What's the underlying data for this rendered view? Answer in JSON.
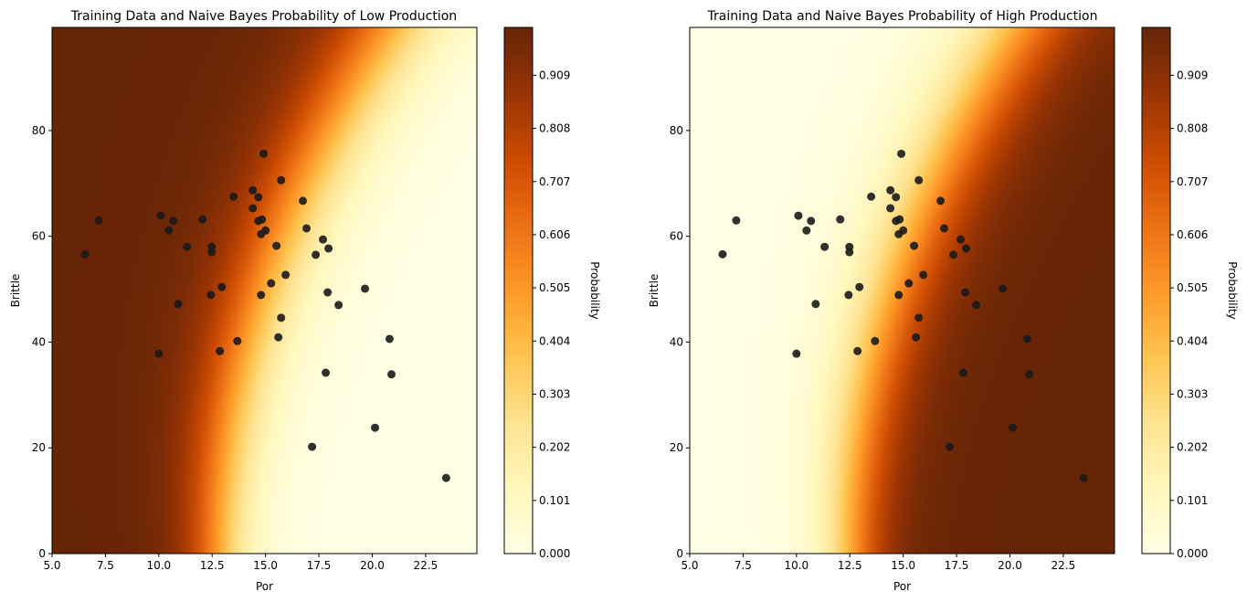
{
  "chart_data": [
    {
      "type": "heatmap",
      "title": "Training Data and Naive Bayes  Probability of Low Production",
      "xlabel": "Por",
      "ylabel": "Brittle",
      "xlim": [
        5.0,
        24.9
      ],
      "ylim": [
        0,
        99.5
      ],
      "xticks": [
        "5.0",
        "7.5",
        "10.0",
        "12.5",
        "15.0",
        "17.5",
        "20.0",
        "22.5"
      ],
      "yticks": [
        "0",
        "20",
        "40",
        "60",
        "80"
      ],
      "colorbar_label": "Probability",
      "colorbar_ticks": [
        "0.000",
        "0.101",
        "0.202",
        "0.303",
        "0.404",
        "0.505",
        "0.606",
        "0.707",
        "0.808",
        "0.909"
      ],
      "colormap": "YlOrBr",
      "target": "low"
    },
    {
      "type": "heatmap",
      "title": "Training Data and Naive Bayes  Probability of High Production",
      "xlabel": "Por",
      "ylabel": "Brittle",
      "xlim": [
        5.0,
        24.9
      ],
      "ylim": [
        0,
        99.5
      ],
      "xticks": [
        "5.0",
        "7.5",
        "10.0",
        "12.5",
        "15.0",
        "17.5",
        "20.0",
        "22.5"
      ],
      "yticks": [
        "0",
        "20",
        "40",
        "60",
        "80"
      ],
      "colorbar_label": "Probability",
      "colorbar_ticks": [
        "0.000",
        "0.101",
        "0.202",
        "0.303",
        "0.404",
        "0.505",
        "0.606",
        "0.707",
        "0.808",
        "0.909"
      ],
      "colormap": "YlOrBr",
      "target": "high"
    }
  ],
  "training_points": [
    [
      6.54,
      56.6
    ],
    [
      7.18,
      63.0
    ],
    [
      10.09,
      63.9
    ],
    [
      10.47,
      61.1
    ],
    [
      10.68,
      62.9
    ],
    [
      11.32,
      58.0
    ],
    [
      10.9,
      47.2
    ],
    [
      10.0,
      37.8
    ],
    [
      12.05,
      63.2
    ],
    [
      12.48,
      58.0
    ],
    [
      12.48,
      57.0
    ],
    [
      12.44,
      48.9
    ],
    [
      12.95,
      50.4
    ],
    [
      12.86,
      38.3
    ],
    [
      13.5,
      67.5
    ],
    [
      13.68,
      40.2
    ],
    [
      14.4,
      68.7
    ],
    [
      14.4,
      65.3
    ],
    [
      14.66,
      67.4
    ],
    [
      14.66,
      62.9
    ],
    [
      14.83,
      63.2
    ],
    [
      14.79,
      60.4
    ],
    [
      15.0,
      61.1
    ],
    [
      14.79,
      48.9
    ],
    [
      14.91,
      75.6
    ],
    [
      15.26,
      51.1
    ],
    [
      15.51,
      58.2
    ],
    [
      15.73,
      70.6
    ],
    [
      15.94,
      52.7
    ],
    [
      15.73,
      44.6
    ],
    [
      15.6,
      40.9
    ],
    [
      16.75,
      66.7
    ],
    [
      16.92,
      61.5
    ],
    [
      17.35,
      56.5
    ],
    [
      17.69,
      59.4
    ],
    [
      17.95,
      57.7
    ],
    [
      17.91,
      49.4
    ],
    [
      17.82,
      34.2
    ],
    [
      17.18,
      20.2
    ],
    [
      18.42,
      47.0
    ],
    [
      19.66,
      50.1
    ],
    [
      20.81,
      40.6
    ],
    [
      20.9,
      33.9
    ],
    [
      20.13,
      23.8
    ],
    [
      23.46,
      14.3
    ]
  ],
  "colors": {
    "point": "#1a1a1a",
    "cmap_stops": [
      "#ffffe5",
      "#fff7bc",
      "#fee391",
      "#fec44f",
      "#fe9929",
      "#ec7014",
      "#cc4c02",
      "#993404",
      "#662506"
    ]
  }
}
